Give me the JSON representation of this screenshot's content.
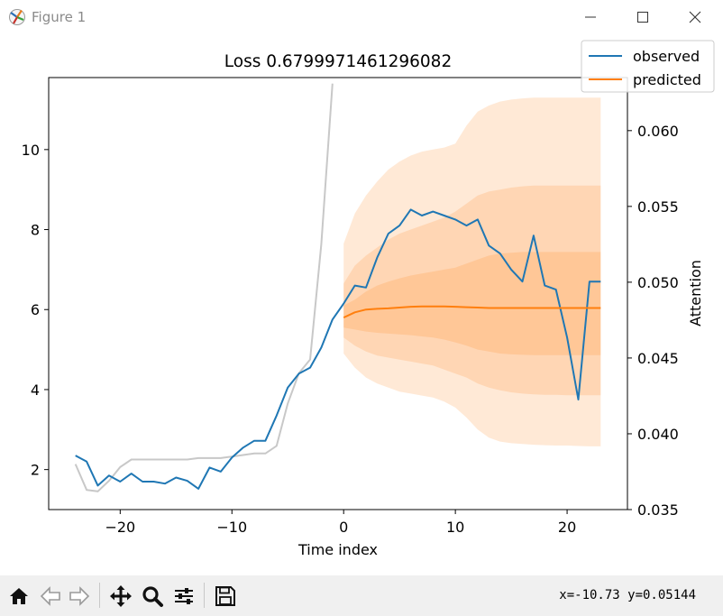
{
  "window": {
    "title": "Figure 1",
    "minimize_icon": "minimize-icon",
    "maximize_icon": "maximize-icon",
    "close_icon": "close-icon"
  },
  "toolbar": {
    "buttons": [
      {
        "name": "home-button",
        "icon": "home-icon"
      },
      {
        "name": "back-button",
        "icon": "back-arrow-icon"
      },
      {
        "name": "forward-button",
        "icon": "forward-arrow-icon"
      },
      {
        "name": "pan-button",
        "icon": "pan-icon"
      },
      {
        "name": "zoom-button",
        "icon": "magnifier-icon"
      },
      {
        "name": "configure-subplots-button",
        "icon": "sliders-icon"
      },
      {
        "name": "save-button",
        "icon": "save-icon"
      }
    ],
    "coordinates": "x=-10.73 y=0.05144"
  },
  "chart_data": {
    "type": "line",
    "title": "Loss 0.6799971461296082",
    "xlabel": "Time index",
    "ylabel": "",
    "y2label": "Attention",
    "xlim": [
      -26.4,
      25.4
    ],
    "ylim": [
      1.0,
      11.8
    ],
    "y2lim": [
      0.035,
      0.0635
    ],
    "xticks": [
      -20,
      -10,
      0,
      10,
      20
    ],
    "xtick_labels": [
      "−20",
      "−10",
      "0",
      "10",
      "20"
    ],
    "yticks": [
      2,
      4,
      6,
      8,
      10
    ],
    "ytick_labels": [
      "2",
      "4",
      "6",
      "8",
      "10"
    ],
    "y2ticks": [
      0.035,
      0.04,
      0.045,
      0.05,
      0.055,
      0.06
    ],
    "y2tick_labels": [
      "0.035",
      "0.040",
      "0.045",
      "0.050",
      "0.055",
      "0.060"
    ],
    "grid": false,
    "legend_position": "top-right",
    "colors": {
      "observed": "#1f77b4",
      "predicted": "#ff7f0e",
      "attention": "#c8c8c8",
      "band": "#ff7f0e"
    },
    "attention": {
      "axis": "right",
      "x": [
        -24,
        -23,
        -22,
        -21,
        -20,
        -19,
        -18,
        -17,
        -16,
        -15,
        -14,
        -13,
        -12,
        -11,
        -10,
        -9,
        -8,
        -7,
        -6,
        -5,
        -4,
        -3,
        -2,
        -1
      ],
      "y": [
        0.038,
        0.0363,
        0.0362,
        0.0369,
        0.0378,
        0.0383,
        0.0383,
        0.0383,
        0.0383,
        0.0383,
        0.0383,
        0.0384,
        0.0384,
        0.0384,
        0.0385,
        0.0386,
        0.0387,
        0.0387,
        0.0392,
        0.042,
        0.044,
        0.0449,
        0.0525,
        0.0631
      ]
    },
    "series": [
      {
        "name": "observed",
        "x": [
          -24,
          -23,
          -22,
          -21,
          -20,
          -19,
          -18,
          -17,
          -16,
          -15,
          -14,
          -13,
          -12,
          -11,
          -10,
          -9,
          -8,
          -7,
          -6,
          -5,
          -4,
          -3,
          -2,
          -1,
          0,
          1,
          2,
          3,
          4,
          5,
          6,
          7,
          8,
          9,
          10,
          11,
          12,
          13,
          14,
          15,
          16,
          17,
          18,
          19,
          20,
          21,
          22,
          23
        ],
        "y": [
          2.35,
          2.2,
          1.6,
          1.85,
          1.7,
          1.9,
          1.7,
          1.7,
          1.65,
          1.8,
          1.72,
          1.52,
          2.05,
          1.95,
          2.3,
          2.55,
          2.72,
          2.72,
          3.35,
          4.05,
          4.4,
          4.55,
          5.05,
          5.75,
          6.15,
          6.6,
          6.55,
          7.3,
          7.9,
          8.1,
          8.5,
          8.35,
          8.45,
          8.35,
          8.25,
          8.1,
          8.25,
          7.6,
          7.4,
          7.0,
          6.7,
          7.85,
          6.6,
          6.5,
          5.3,
          3.75,
          6.7,
          6.7
        ]
      },
      {
        "name": "predicted",
        "x": [
          0,
          1,
          2,
          3,
          4,
          5,
          6,
          7,
          8,
          9,
          10,
          11,
          12,
          13,
          14,
          15,
          16,
          17,
          18,
          19,
          20,
          21,
          22,
          23
        ],
        "y": [
          5.8,
          5.93,
          6.0,
          6.02,
          6.03,
          6.05,
          6.07,
          6.08,
          6.08,
          6.08,
          6.07,
          6.06,
          6.05,
          6.04,
          6.04,
          6.04,
          6.04,
          6.04,
          6.04,
          6.04,
          6.04,
          6.04,
          6.04,
          6.04
        ]
      }
    ],
    "bands": [
      {
        "x": [
          0,
          1,
          2,
          3,
          4,
          5,
          6,
          7,
          8,
          9,
          10,
          11,
          12,
          13,
          14,
          15,
          16,
          17,
          18,
          19,
          20,
          21,
          22,
          23
        ],
        "lower": [
          4.9,
          4.55,
          4.3,
          4.15,
          4.05,
          3.95,
          3.9,
          3.85,
          3.8,
          3.7,
          3.55,
          3.3,
          3.0,
          2.8,
          2.7,
          2.66,
          2.64,
          2.62,
          2.61,
          2.6,
          2.6,
          2.59,
          2.58,
          2.58
        ],
        "upper": [
          7.65,
          8.4,
          8.85,
          9.2,
          9.5,
          9.7,
          9.85,
          9.95,
          10.0,
          10.05,
          10.15,
          10.6,
          10.95,
          11.1,
          11.2,
          11.25,
          11.28,
          11.3,
          11.3,
          11.3,
          11.3,
          11.3,
          11.3,
          11.3
        ]
      },
      {
        "x": [
          0,
          1,
          2,
          3,
          4,
          5,
          6,
          7,
          8,
          9,
          10,
          11,
          12,
          13,
          14,
          15,
          16,
          17,
          18,
          19,
          20,
          21,
          22,
          23
        ],
        "lower": [
          5.3,
          5.1,
          4.95,
          4.85,
          4.8,
          4.75,
          4.7,
          4.65,
          4.6,
          4.5,
          4.4,
          4.3,
          4.15,
          4.05,
          3.98,
          3.93,
          3.9,
          3.88,
          3.87,
          3.87,
          3.86,
          3.86,
          3.86,
          3.86
        ],
        "upper": [
          6.65,
          7.1,
          7.35,
          7.55,
          7.75,
          7.9,
          8.0,
          8.1,
          8.2,
          8.3,
          8.45,
          8.65,
          8.85,
          8.95,
          9.0,
          9.05,
          9.08,
          9.1,
          9.1,
          9.1,
          9.1,
          9.1,
          9.1,
          9.1
        ]
      },
      {
        "x": [
          0,
          1,
          2,
          3,
          4,
          5,
          6,
          7,
          8,
          9,
          10,
          11,
          12,
          13,
          14,
          15,
          16,
          17,
          18,
          19,
          20,
          21,
          22,
          23
        ],
        "lower": [
          5.55,
          5.5,
          5.45,
          5.42,
          5.4,
          5.38,
          5.36,
          5.33,
          5.3,
          5.25,
          5.18,
          5.1,
          5.0,
          4.95,
          4.9,
          4.88,
          4.87,
          4.86,
          4.86,
          4.86,
          4.86,
          4.86,
          4.86,
          4.86
        ],
        "upper": [
          6.1,
          6.25,
          6.45,
          6.6,
          6.7,
          6.78,
          6.85,
          6.9,
          6.95,
          7.0,
          7.05,
          7.15,
          7.25,
          7.35,
          7.4,
          7.42,
          7.44,
          7.44,
          7.44,
          7.44,
          7.44,
          7.44,
          7.44,
          7.44
        ]
      }
    ]
  }
}
